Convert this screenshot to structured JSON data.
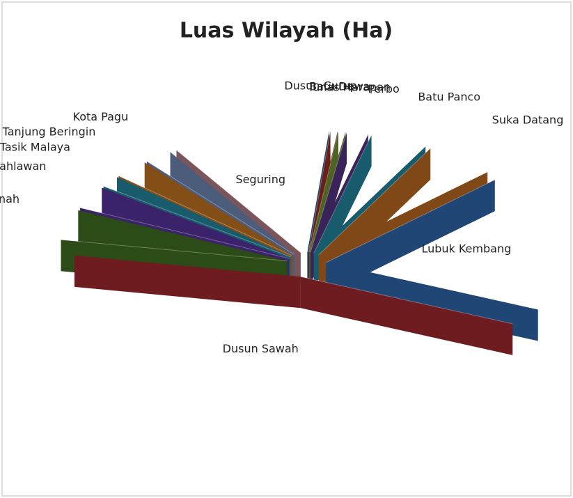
{
  "chart_data": {
    "type": "pie",
    "title": "Luas Wilayah (Ha)",
    "categories": [
      "Dusun Curup",
      "Batu Dewa",
      "Tunas Harapan",
      "Perbo",
      "Batu Panco",
      "Suka Datang",
      "Lubuk Kembang",
      "Dusun Sawah",
      "Taba Renah",
      "Desa Pahlawan",
      "Tasik Malaya",
      "Tanjung Beringin",
      "Kota Pagu",
      "Seguring"
    ],
    "values": [
      1.5,
      0.5,
      0.5,
      1.5,
      4,
      5,
      18,
      46,
      4,
      3,
      1.5,
      2.5,
      2,
      9
    ],
    "colors": [
      "#2a6fc9",
      "#c0392b",
      "#8ab43c",
      "#6a3fa0",
      "#2aa5c4",
      "#e8822a",
      "#3a7fd5",
      "#c8323a",
      "#4f8a2a",
      "#6a3fc0",
      "#2aa5c4",
      "#f0902a",
      "#8aa8e0",
      "#e09aa8"
    ]
  }
}
